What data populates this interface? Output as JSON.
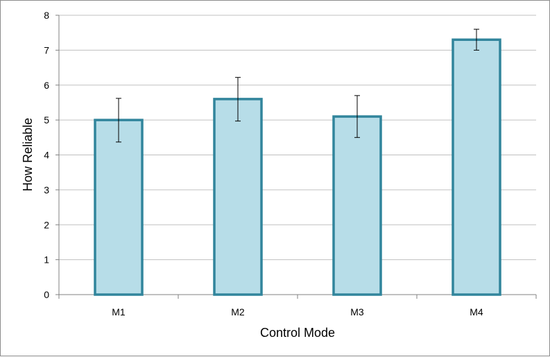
{
  "chart_data": {
    "type": "bar",
    "title": "",
    "xlabel": "Control Mode",
    "ylabel": "How Reliable",
    "categories": [
      "M1",
      "M2",
      "M3",
      "M4"
    ],
    "values": [
      5.0,
      5.6,
      5.1,
      7.3
    ],
    "error_low": [
      4.37,
      4.97,
      4.5,
      7.0
    ],
    "error_high": [
      5.62,
      6.22,
      5.7,
      7.6
    ],
    "ylim": [
      0,
      8
    ],
    "yticks": [
      "0",
      "1",
      "2",
      "3",
      "4",
      "5",
      "6",
      "7",
      "8"
    ],
    "grid": true,
    "legend": "none",
    "colors": {
      "bar_fill": "#b7dde8",
      "bar_stroke": "#31859c",
      "grid": "#c0c0c0",
      "axis": "#808080",
      "error_bar": "#000000"
    }
  }
}
